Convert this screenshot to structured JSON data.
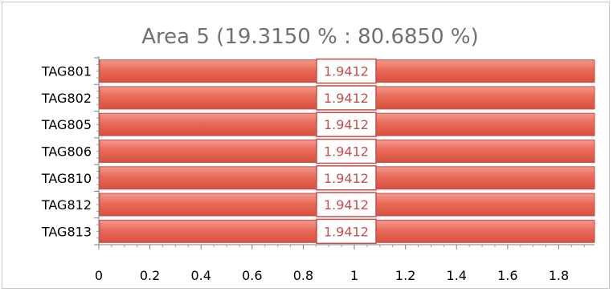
{
  "chart_data": {
    "type": "bar",
    "orientation": "horizontal",
    "title": "Area 5 (19.3150 % : 80.6850 %)",
    "xlabel": "",
    "ylabel": "",
    "categories": [
      "TAG801",
      "TAG802",
      "TAG805",
      "TAG806",
      "TAG810",
      "TAG812",
      "TAG813"
    ],
    "series": [
      {
        "values": [
          1.9412,
          1.9412,
          1.9412,
          1.9412,
          1.9412,
          1.9412,
          1.9412
        ],
        "color": "#e4604e",
        "border_color": "#c0504d"
      }
    ],
    "data_labels": [
      "1.9412",
      "1.9412",
      "1.9412",
      "1.9412",
      "1.9412",
      "1.9412",
      "1.9412"
    ],
    "xlim": [
      0,
      1.94
    ],
    "xticks": [
      0,
      0.2,
      0.4,
      0.6,
      0.8,
      1,
      1.2,
      1.4,
      1.6,
      1.8
    ],
    "xtick_labels": [
      "0",
      "0.2",
      "0.4",
      "0.6",
      "0.8",
      "1",
      "1.2",
      "1.4",
      "1.6",
      "1.8"
    ],
    "grid": false,
    "legend": "none",
    "label_color": "#c0504d",
    "title_color": "#707070"
  }
}
